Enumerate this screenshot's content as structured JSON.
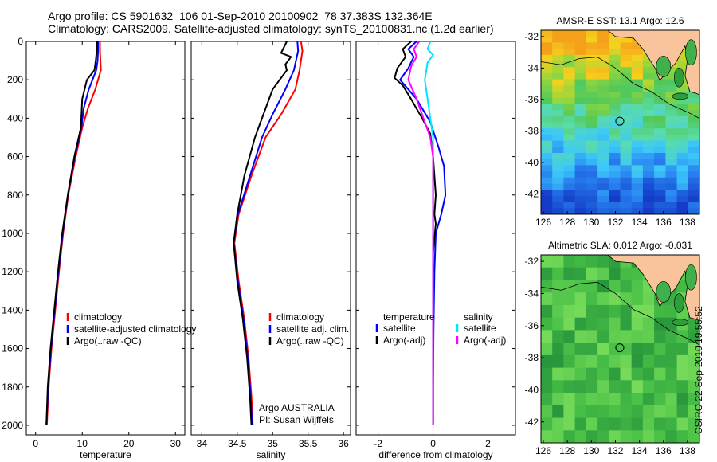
{
  "header": {
    "line1": "Argo profile: CS 5901632_106 01-Sep-2010 20100902_78 37.383S 132.364E",
    "line2": "Climatology: CARS2009. Satellite-adjusted climatology: synTS_20100831.nc (1.2d earlier)"
  },
  "stamp": "CSIRO 22-Sep-2010 19:55:52",
  "colors": {
    "climatology": "#ff0000",
    "satellite": "#0000ff",
    "argo": "#000000",
    "salinity_satellite": "#00e5ff",
    "salinity_argo": "#ff00ff",
    "land": "#f9c39c"
  },
  "chart_data": [
    {
      "type": "line",
      "xlabel": "temperature",
      "xticks": [
        "0",
        "10",
        "20",
        "30"
      ],
      "xtick_values": [
        0,
        10,
        20,
        30
      ],
      "xlim": [
        -2,
        32
      ],
      "ylim": [
        0,
        2050
      ],
      "yticks": [
        "0",
        "200",
        "400",
        "600",
        "800",
        "1000",
        "1200",
        "1400",
        "1600",
        "1800",
        "2000"
      ],
      "ytick_values": [
        0,
        200,
        400,
        600,
        800,
        1000,
        1200,
        1400,
        1600,
        1800,
        2000
      ],
      "legend": [
        "climatology",
        "satellite-adjusted climatology",
        "Argo(..raw -QC)"
      ],
      "series": [
        {
          "name": "climatology",
          "color": "#ff0000",
          "points": [
            [
              13.8,
              0
            ],
            [
              13.8,
              50
            ],
            [
              13.9,
              100
            ],
            [
              14.0,
              150
            ],
            [
              12.8,
              250
            ],
            [
              11.2,
              350
            ],
            [
              10.0,
              450
            ],
            [
              8.6,
              600
            ],
            [
              7.0,
              800
            ],
            [
              5.9,
              1000
            ],
            [
              5.0,
              1200
            ],
            [
              4.2,
              1400
            ],
            [
              3.4,
              1600
            ],
            [
              2.8,
              1800
            ],
            [
              2.4,
              2000
            ]
          ]
        },
        {
          "name": "satellite-adjusted climatology",
          "color": "#0000ff",
          "points": [
            [
              13.4,
              0
            ],
            [
              13.4,
              50
            ],
            [
              13.3,
              100
            ],
            [
              13.0,
              150
            ],
            [
              11.4,
              250
            ],
            [
              10.3,
              350
            ],
            [
              9.8,
              450
            ],
            [
              8.4,
              600
            ],
            [
              6.9,
              800
            ],
            [
              5.8,
              1000
            ],
            [
              4.9,
              1200
            ],
            [
              4.1,
              1400
            ],
            [
              3.3,
              1600
            ],
            [
              2.7,
              1800
            ],
            [
              2.3,
              2000
            ]
          ]
        },
        {
          "name": "Argo(..raw -QC)",
          "color": "#000000",
          "points": [
            [
              13.2,
              0
            ],
            [
              13.1,
              50
            ],
            [
              12.9,
              100
            ],
            [
              12.6,
              150
            ],
            [
              11.0,
              200
            ],
            [
              10.0,
              300
            ],
            [
              9.7,
              450
            ],
            [
              8.3,
              600
            ],
            [
              6.9,
              800
            ],
            [
              5.7,
              1000
            ],
            [
              4.8,
              1200
            ],
            [
              4.0,
              1400
            ],
            [
              3.2,
              1600
            ],
            [
              2.6,
              1800
            ],
            [
              2.3,
              2000
            ]
          ]
        }
      ]
    },
    {
      "type": "line",
      "xlabel": "salinity",
      "xticks": [
        "34",
        "34.5",
        "35",
        "35.5",
        "36"
      ],
      "xtick_values": [
        34,
        34.5,
        35,
        35.5,
        36
      ],
      "xlim": [
        33.85,
        36.1
      ],
      "ylim": [
        0,
        2050
      ],
      "legend": [
        "climatology",
        "satellite adj. clim.",
        "Argo(..raw -QC)"
      ],
      "annotation": [
        "Argo AUSTRALIA",
        "PI: Susan Wijffels"
      ],
      "series": [
        {
          "name": "climatology",
          "color": "#ff0000",
          "points": [
            [
              35.4,
              0
            ],
            [
              35.42,
              50
            ],
            [
              35.38,
              150
            ],
            [
              35.32,
              250
            ],
            [
              35.12,
              380
            ],
            [
              34.9,
              500
            ],
            [
              34.7,
              700
            ],
            [
              34.52,
              900
            ],
            [
              34.46,
              1050
            ],
            [
              34.52,
              1250
            ],
            [
              34.6,
              1450
            ],
            [
              34.66,
              1650
            ],
            [
              34.7,
              1850
            ],
            [
              34.72,
              2000
            ]
          ]
        },
        {
          "name": "satellite adj. clim.",
          "color": "#0000ff",
          "points": [
            [
              35.35,
              0
            ],
            [
              35.36,
              50
            ],
            [
              35.3,
              150
            ],
            [
              35.18,
              250
            ],
            [
              35.0,
              380
            ],
            [
              34.85,
              500
            ],
            [
              34.68,
              700
            ],
            [
              34.51,
              900
            ],
            [
              34.45,
              1050
            ],
            [
              34.51,
              1250
            ],
            [
              34.59,
              1450
            ],
            [
              34.65,
              1650
            ],
            [
              34.69,
              1850
            ],
            [
              34.71,
              2000
            ]
          ]
        },
        {
          "name": "Argo(..raw -QC)",
          "color": "#000000",
          "points": [
            [
              35.2,
              0
            ],
            [
              35.12,
              60
            ],
            [
              35.26,
              80
            ],
            [
              35.18,
              120
            ],
            [
              35.2,
              150
            ],
            [
              35.0,
              250
            ],
            [
              34.85,
              400
            ],
            [
              34.75,
              500
            ],
            [
              34.6,
              700
            ],
            [
              34.5,
              900
            ],
            [
              34.45,
              1050
            ],
            [
              34.5,
              1250
            ],
            [
              34.58,
              1450
            ],
            [
              34.64,
              1650
            ],
            [
              34.68,
              1850
            ],
            [
              34.7,
              2000
            ]
          ]
        }
      ]
    },
    {
      "type": "line",
      "xlabel": "difference from climatology",
      "xticks": [
        "-2",
        "0",
        "2"
      ],
      "xtick_values": [
        -2,
        0,
        2
      ],
      "xlim": [
        -2.8,
        3.0
      ],
      "ylim": [
        0,
        2050
      ],
      "legend_temperature": {
        "title": "temperature",
        "items": [
          "satellite",
          "Argo(-adj)"
        ]
      },
      "legend_salinity": {
        "title": "salinity",
        "items": [
          "satellite",
          "Argo(-adj)"
        ]
      },
      "series": [
        {
          "name": "temperature satellite",
          "color": "#0000ff",
          "points": [
            [
              -0.6,
              0
            ],
            [
              -0.9,
              40
            ],
            [
              -0.7,
              80
            ],
            [
              -0.9,
              140
            ],
            [
              -1.2,
              200
            ],
            [
              -0.6,
              300
            ],
            [
              -0.1,
              420
            ],
            [
              0.2,
              550
            ],
            [
              0.4,
              650
            ],
            [
              0.45,
              800
            ],
            [
              0.3,
              900
            ],
            [
              0.1,
              1000
            ],
            [
              0.05,
              1200
            ],
            [
              0.02,
              1500
            ],
            [
              0.0,
              1800
            ],
            [
              0.0,
              2000
            ]
          ]
        },
        {
          "name": "temperature Argo(-adj)",
          "color": "#000000",
          "points": [
            [
              -0.8,
              0
            ],
            [
              -1.1,
              40
            ],
            [
              -1.0,
              80
            ],
            [
              -1.3,
              140
            ],
            [
              -1.4,
              190
            ],
            [
              -1.1,
              230
            ],
            [
              -0.8,
              300
            ],
            [
              -0.4,
              400
            ],
            [
              -0.1,
              480
            ],
            [
              0.0,
              600
            ],
            [
              0.1,
              800
            ],
            [
              0.05,
              900
            ],
            [
              0.1,
              950
            ],
            [
              0.0,
              1100
            ],
            [
              0.0,
              2000
            ]
          ]
        },
        {
          "name": "salinity satellite",
          "color": "#00e5ff",
          "points": [
            [
              -0.1,
              0
            ],
            [
              -0.2,
              40
            ],
            [
              0.0,
              70
            ],
            [
              -0.2,
              110
            ],
            [
              -0.3,
              200
            ],
            [
              -0.2,
              300
            ],
            [
              -0.1,
              400
            ],
            [
              0.0,
              500
            ],
            [
              0.0,
              2000
            ]
          ]
        },
        {
          "name": "salinity Argo(-adj)",
          "color": "#ff00ff",
          "points": [
            [
              -0.5,
              0
            ],
            [
              -0.7,
              40
            ],
            [
              -0.6,
              80
            ],
            [
              -0.8,
              130
            ],
            [
              -0.9,
              200
            ],
            [
              -0.6,
              300
            ],
            [
              -0.3,
              420
            ],
            [
              -0.1,
              500
            ],
            [
              0.0,
              600
            ],
            [
              0.0,
              2000
            ]
          ]
        }
      ]
    },
    {
      "type": "heatmap",
      "title": "AMSR-E SST: 13.1 Argo: 12.6",
      "xticks": [
        "126",
        "128",
        "130",
        "132",
        "134",
        "136",
        "138"
      ],
      "yticks": [
        "-32",
        "-34",
        "-36",
        "-38",
        "-40",
        "-42"
      ],
      "float_lon": 132.364,
      "float_lat": -37.383
    },
    {
      "type": "heatmap",
      "title": "Altimetric SLA: 0.012 Argo: -0.031",
      "xticks": [
        "126",
        "128",
        "130",
        "132",
        "134",
        "136",
        "138"
      ],
      "yticks": [
        "-32",
        "-34",
        "-36",
        "-38",
        "-40",
        "-42"
      ],
      "float_lon": 132.364,
      "float_lat": -37.383
    }
  ]
}
